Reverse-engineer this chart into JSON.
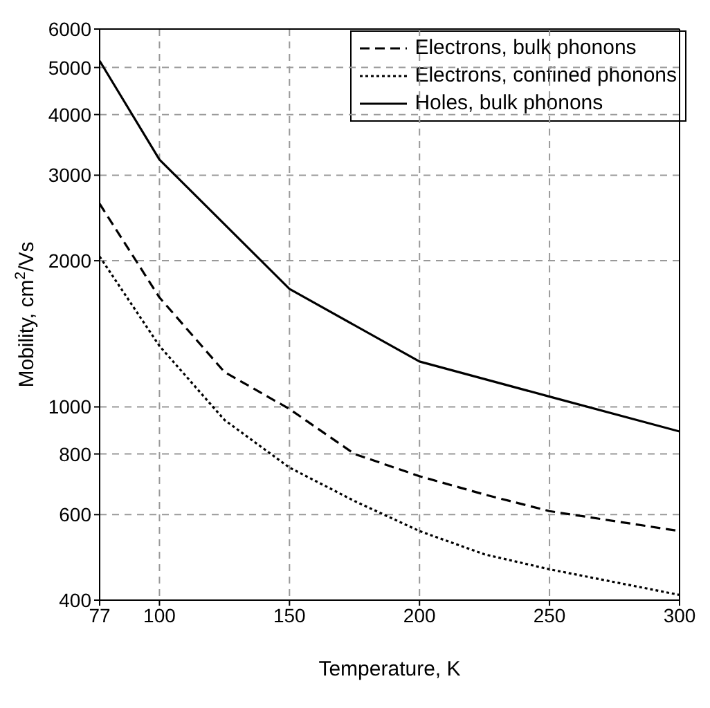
{
  "chart_data": {
    "type": "line",
    "xlabel": "Temperature, K",
    "ylabel": "Mobility, cm$^{2}$/Vs",
    "xlim": [
      77,
      300
    ],
    "xticks": [
      77,
      100,
      150,
      200,
      250,
      300
    ],
    "ylim": [
      400,
      6000
    ],
    "yticks": [
      400,
      600,
      800,
      1000,
      2000,
      3000,
      4000,
      5000,
      6000
    ],
    "log": "y",
    "grid": true,
    "legend": "top right",
    "marker": "none",
    "series": [
      {
        "name": "Electrons, bulk phonons",
        "color": "#000000",
        "line_style": "dashed",
        "x": [
          77,
          100,
          125,
          150,
          175,
          200,
          225,
          250,
          300
        ],
        "values": [
          2620,
          1680,
          1180,
          990,
          800,
          720,
          660,
          610,
          555
        ]
      },
      {
        "name": "Electrons, confined phonons",
        "color": "#000000",
        "line_style": "dotted",
        "x": [
          77,
          100,
          125,
          150,
          175,
          200,
          225,
          250,
          300
        ],
        "values": [
          2040,
          1335,
          940,
          750,
          640,
          555,
          497,
          463,
          410
        ]
      },
      {
        "name": "Holes, bulk phonons",
        "color": "#000000",
        "line_style": "solid",
        "x": [
          77,
          100,
          150,
          200,
          250,
          300
        ],
        "values": [
          5160,
          3230,
          1750,
          1240,
          1050,
          890
        ]
      }
    ]
  }
}
